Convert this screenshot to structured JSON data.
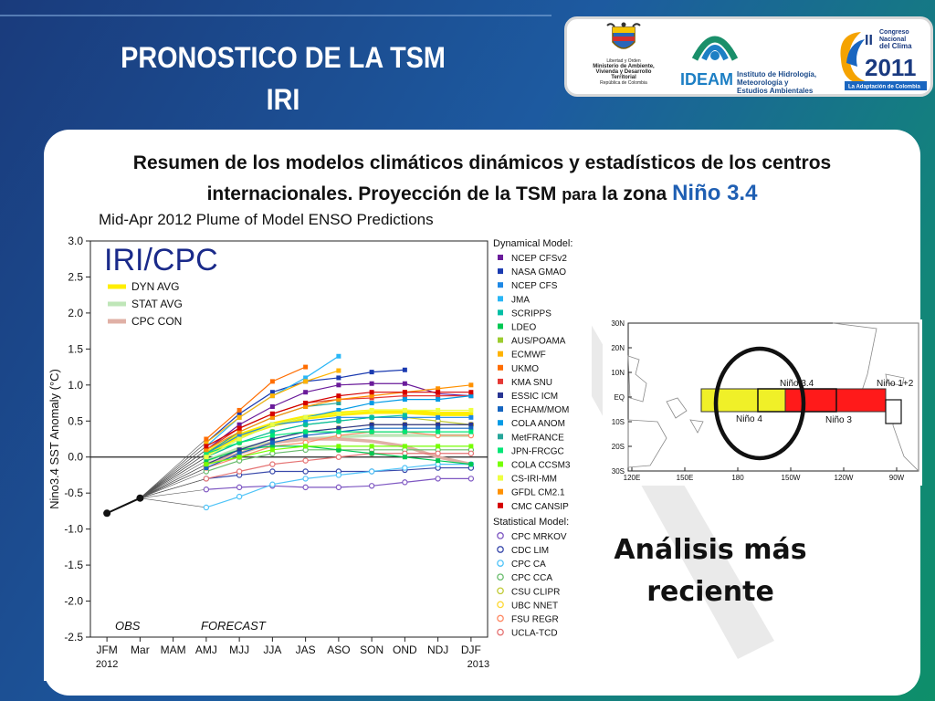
{
  "slide": {
    "title_line1": "PRONOSTICO DE LA TSM",
    "title_line2": "IRI",
    "summary_part1": "Resumen de los modelos climáticos dinámicos y estadísticos de los centros internacionales. Proyección de la TSM ",
    "summary_para": "para",
    "summary_part2": " la zona ",
    "summary_nino": "Niño 3.4",
    "analysis_line1": "Análisis más",
    "analysis_line2": "reciente"
  },
  "logos": {
    "ministry_line1": "Libertad y Orden",
    "ministry_line2": "Ministerio de Ambiente,",
    "ministry_line3": "Vivienda y Desarrollo Territorial",
    "ministry_line4": "República de Colombia",
    "ideam_word": "IDEAM",
    "ideam_line1": "Instituto de Hidrología,",
    "ideam_line2": "Meteorología y",
    "ideam_line3": "Estudios Ambientales",
    "congreso_roman": "II",
    "congreso_line1": "Congreso",
    "congreso_line2": "Nacional",
    "congreso_line3": "del Clima",
    "congreso_year": "2011",
    "congreso_slogan": "La Adaptación de Colombia"
  },
  "chart_data": [
    {
      "type": "line",
      "title": "Mid-Apr 2012 Plume of Model ENSO Predictions",
      "ylabel": "Nino3.4 SST Anomaly (°C)",
      "xlabel": "",
      "ylim": [
        -2.5,
        3.0
      ],
      "yticks": [
        "3.0",
        "2.5",
        "2.0",
        "1.5",
        "1.0",
        "0.5",
        "0.0",
        "-0.5",
        "-1.0",
        "-1.5",
        "-2.0",
        "-2.5"
      ],
      "categories": [
        "JFM",
        "Mar",
        "MAM",
        "AMJ",
        "MJJ",
        "JJA",
        "JAS",
        "ASO",
        "SON",
        "OND",
        "NDJ",
        "DJF"
      ],
      "x_year_start": "2012",
      "x_year_end": "2013",
      "badge": "IRI/CPC",
      "annotations": [
        "OBS",
        "FORECAST"
      ],
      "averages": [
        {
          "name": "DYN AVG",
          "color": "#ffee00",
          "values": [
            null,
            null,
            null,
            0.05,
            0.3,
            0.45,
            0.55,
            0.6,
            0.63,
            0.63,
            0.6,
            0.6
          ]
        },
        {
          "name": "STAT AVG",
          "color": "#bfe6b8",
          "values": [
            null,
            null,
            null,
            -0.05,
            0.12,
            0.2,
            0.25,
            0.28,
            0.3,
            0.3,
            0.3,
            0.3
          ]
        },
        {
          "name": "CPC CON",
          "color": "#e0b0a6",
          "values": [
            null,
            null,
            null,
            -0.1,
            0.05,
            0.2,
            0.25,
            0.25,
            0.22,
            0.15,
            0.0,
            -0.1
          ]
        }
      ],
      "observed": {
        "name": "OBS",
        "values": [
          -0.78,
          -0.57
        ]
      },
      "dynamical_header": "Dynamical Model:",
      "dynamical": [
        {
          "name": "NCEP CFSv2",
          "color": "#6a1b9a",
          "values": [
            null,
            null,
            null,
            0.1,
            0.45,
            0.7,
            0.9,
            1.0,
            1.02,
            1.02,
            0.88,
            0.85
          ]
        },
        {
          "name": "NASA GMAO",
          "color": "#1a3ab0",
          "values": [
            null,
            null,
            null,
            0.2,
            0.6,
            0.9,
            1.05,
            1.1,
            1.18,
            1.21,
            null,
            null
          ]
        },
        {
          "name": "NCEP CFS",
          "color": "#1e88e5",
          "values": [
            null,
            null,
            null,
            0.05,
            0.3,
            0.45,
            0.5,
            0.55,
            0.55,
            0.55,
            0.55,
            0.55
          ]
        },
        {
          "name": "JMA",
          "color": "#29b6f6",
          "values": [
            null,
            null,
            null,
            0.15,
            0.55,
            0.85,
            1.1,
            1.4,
            null,
            null,
            null,
            null
          ]
        },
        {
          "name": "SCRIPPS",
          "color": "#00bfa5",
          "values": [
            null,
            null,
            null,
            0.0,
            0.2,
            0.35,
            0.45,
            0.5,
            0.55,
            0.58,
            null,
            null
          ]
        },
        {
          "name": "LDEO",
          "color": "#00c853",
          "values": [
            null,
            null,
            null,
            -0.05,
            0.1,
            0.15,
            0.15,
            0.1,
            0.05,
            0.0,
            -0.05,
            -0.1
          ]
        },
        {
          "name": "AUS/POAMA",
          "color": "#9ccc2f",
          "values": [
            null,
            null,
            null,
            0.1,
            0.4,
            0.6,
            0.75,
            0.8,
            null,
            null,
            null,
            null
          ]
        },
        {
          "name": "ECMWF",
          "color": "#ffb300",
          "values": [
            null,
            null,
            null,
            0.2,
            0.55,
            0.85,
            1.05,
            1.2,
            null,
            null,
            null,
            null
          ]
        },
        {
          "name": "UKMO",
          "color": "#ff6d00",
          "values": [
            null,
            null,
            null,
            0.25,
            0.65,
            1.05,
            1.25,
            null,
            null,
            null,
            null,
            null
          ]
        },
        {
          "name": "KMA SNU",
          "color": "#e53935",
          "values": [
            null,
            null,
            null,
            0.1,
            0.4,
            0.6,
            0.75,
            0.8,
            0.82,
            0.85,
            0.85,
            0.85
          ]
        },
        {
          "name": "ESSIC ICM",
          "color": "#283593",
          "values": [
            null,
            null,
            null,
            -0.1,
            0.1,
            0.25,
            0.35,
            0.4,
            0.45,
            0.45,
            0.45,
            0.45
          ]
        },
        {
          "name": "ECHAM/MOM",
          "color": "#1565c0",
          "values": [
            null,
            null,
            null,
            -0.15,
            0.05,
            0.2,
            0.3,
            0.35,
            0.4,
            0.4,
            0.4,
            0.4
          ]
        },
        {
          "name": "COLA ANOM",
          "color": "#039be5",
          "values": [
            null,
            null,
            null,
            0.0,
            0.25,
            0.45,
            0.55,
            0.65,
            0.75,
            0.8,
            0.8,
            0.85
          ]
        },
        {
          "name": "MetFRANCE",
          "color": "#26a69a",
          "values": [
            null,
            null,
            null,
            0.05,
            0.35,
            0.55,
            0.7,
            0.75,
            null,
            null,
            null,
            null
          ]
        },
        {
          "name": "JPN-FRCGC",
          "color": "#00e676",
          "values": [
            null,
            null,
            null,
            0.05,
            0.2,
            0.3,
            0.35,
            0.35,
            0.35,
            0.35,
            0.35,
            0.35
          ]
        },
        {
          "name": "COLA CCSM3",
          "color": "#76ff03",
          "values": [
            null,
            null,
            null,
            -0.1,
            0.0,
            0.1,
            0.15,
            0.15,
            0.15,
            0.15,
            0.15,
            0.15
          ]
        },
        {
          "name": "CS-IRI-MM",
          "color": "#eeff41",
          "values": [
            null,
            null,
            null,
            0.0,
            0.25,
            0.45,
            0.55,
            0.6,
            0.65,
            0.65,
            0.65,
            0.65
          ]
        },
        {
          "name": "GFDL CM2.1",
          "color": "#ff9100",
          "values": [
            null,
            null,
            null,
            0.1,
            0.35,
            0.55,
            0.7,
            0.8,
            0.85,
            0.9,
            0.95,
            1.0
          ]
        },
        {
          "name": "CMC CANSIP",
          "color": "#d50000",
          "values": [
            null,
            null,
            null,
            0.15,
            0.4,
            0.6,
            0.75,
            0.85,
            0.9,
            0.9,
            0.9,
            0.9
          ]
        }
      ],
      "statistical_header": "Statistical Model:",
      "statistical": [
        {
          "name": "CPC MRKOV",
          "color": "#7e57c2",
          "values": [
            null,
            null,
            null,
            -0.45,
            -0.42,
            -0.4,
            -0.42,
            -0.42,
            -0.4,
            -0.35,
            -0.3,
            -0.3
          ]
        },
        {
          "name": "CDC LIM",
          "color": "#3949ab",
          "values": [
            null,
            null,
            null,
            -0.3,
            -0.25,
            -0.2,
            -0.2,
            -0.2,
            -0.2,
            -0.18,
            -0.15,
            -0.15
          ]
        },
        {
          "name": "CPC CA",
          "color": "#4fc3f7",
          "values": [
            null,
            null,
            null,
            -0.7,
            -0.55,
            -0.38,
            -0.3,
            -0.25,
            -0.2,
            -0.15,
            -0.1,
            -0.1
          ]
        },
        {
          "name": "CPC CCA",
          "color": "#66bb6a",
          "values": [
            null,
            null,
            null,
            -0.2,
            -0.05,
            0.05,
            0.1,
            0.1,
            0.1,
            0.1,
            0.1,
            0.1
          ]
        },
        {
          "name": "CSU CLIPR",
          "color": "#c0ca33",
          "values": [
            null,
            null,
            null,
            0.0,
            0.2,
            0.35,
            0.45,
            0.5,
            0.55,
            0.55,
            0.5,
            0.45
          ]
        },
        {
          "name": "UBC NNET",
          "color": "#fdd835",
          "values": [
            null,
            null,
            null,
            -0.1,
            0.1,
            0.25,
            0.35,
            0.4,
            0.45,
            0.45,
            0.45,
            0.45
          ]
        },
        {
          "name": "FSU REGR",
          "color": "#ff8a65",
          "values": [
            null,
            null,
            null,
            -0.15,
            0.0,
            0.15,
            0.2,
            0.3,
            0.35,
            0.35,
            0.3,
            0.3
          ]
        },
        {
          "name": "UCLA-TCD",
          "color": "#e57373",
          "values": [
            null,
            null,
            null,
            -0.3,
            -0.2,
            -0.1,
            -0.05,
            0.0,
            0.05,
            0.05,
            0.05,
            0.05
          ]
        }
      ]
    },
    {
      "type": "map",
      "y_labels": [
        "30N",
        "20N",
        "10N",
        "EQ",
        "10S",
        "20S",
        "30S"
      ],
      "x_labels": [
        "120E",
        "150E",
        "180",
        "150W",
        "120W",
        "90W"
      ],
      "regions": [
        {
          "name": "Niño 4",
          "color": "#f0f028"
        },
        {
          "name": "Niño 3.4",
          "color": "#ff1a1a"
        },
        {
          "name": "Niño 3",
          "color": "#ff1a1a"
        },
        {
          "name": "Niño 1+2",
          "color": "#ffffff"
        }
      ]
    }
  ]
}
